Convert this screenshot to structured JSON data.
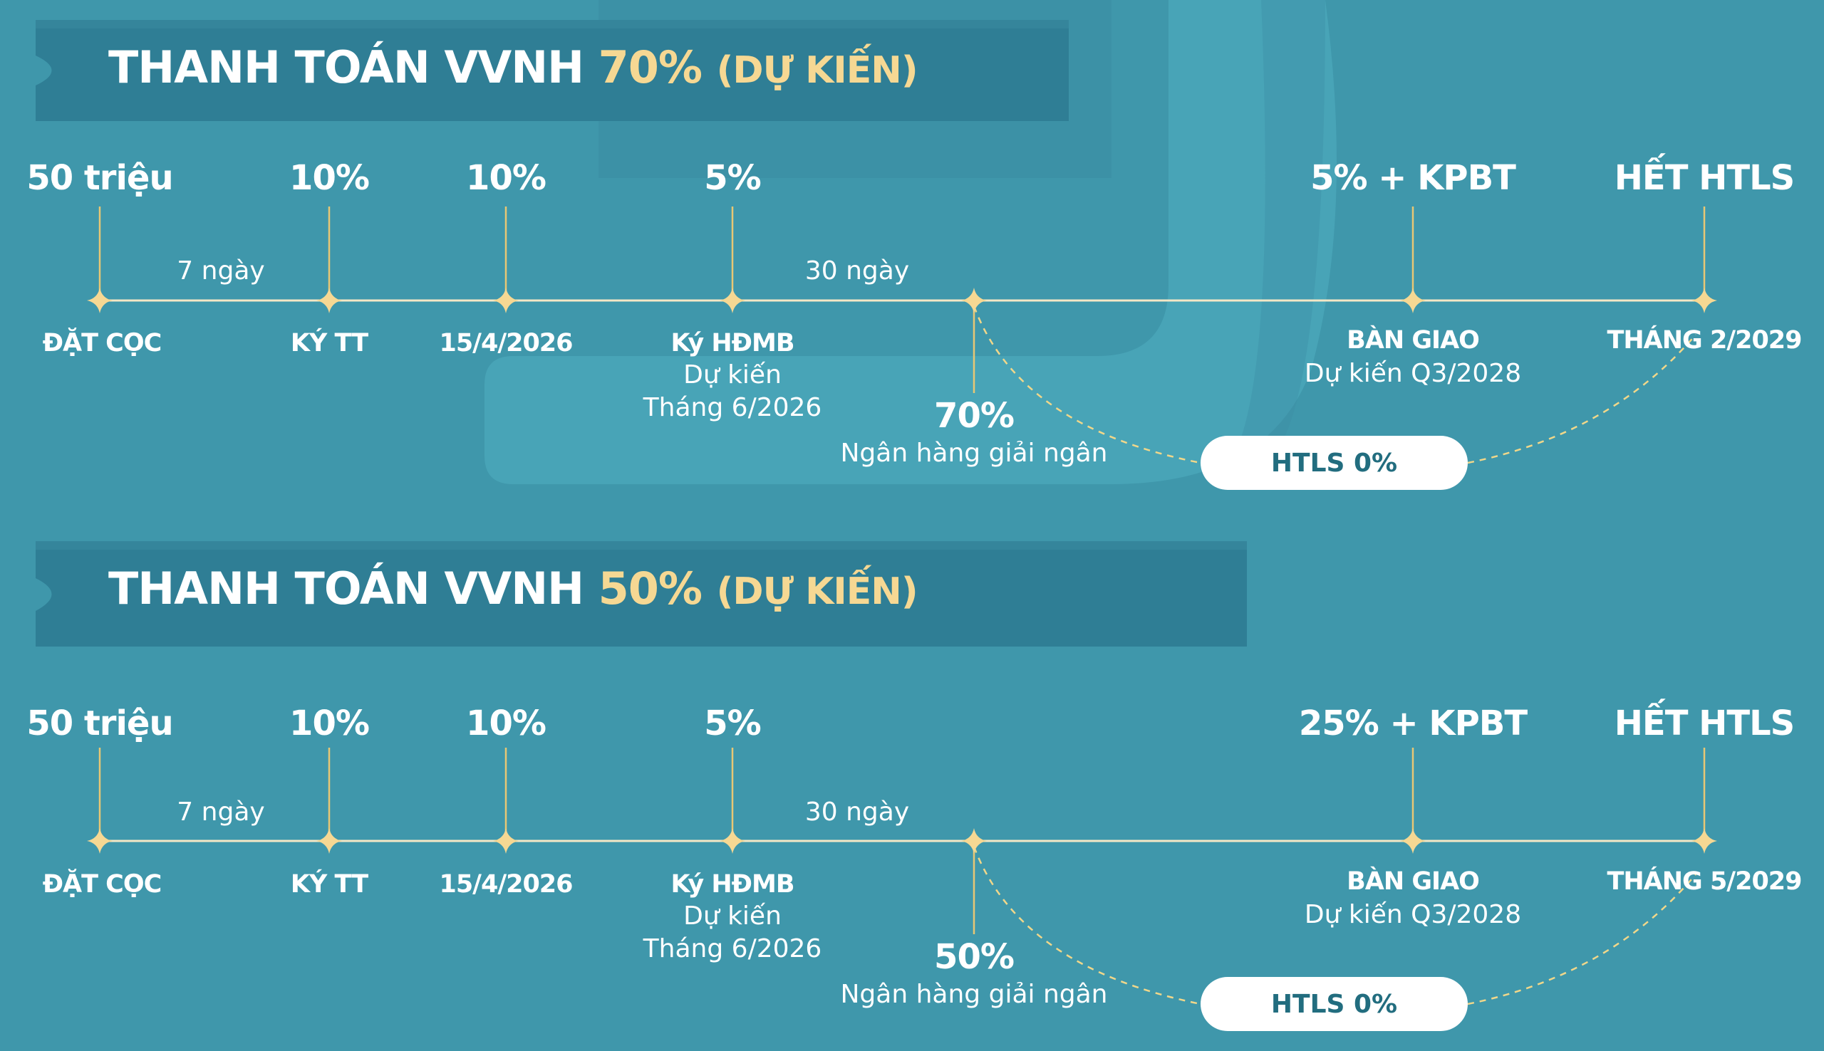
{
  "colors": {
    "background": "#3f97ab",
    "accent_gold": "#f6d893",
    "banner": "#2f7e95",
    "pill_text": "#226d7f"
  },
  "sections": [
    {
      "title": {
        "main": "THANH TOÁN VVNH",
        "pct": "70%",
        "sub": "(DỰ KIẾN)"
      },
      "top_labels": [
        "50 triệu",
        "10%",
        "10%",
        "5%",
        "5% + KPBT",
        "HẾT HTLS"
      ],
      "bottom_labels": [
        "ĐẶT CỌC",
        "KÝ TT",
        "15/4/2026",
        "Ký HĐMB",
        "BÀN GIAO",
        "THÁNG 2/2029"
      ],
      "hdmb_note": [
        "Dự kiến",
        "Tháng 6/2026"
      ],
      "handover_note": "Dự kiến Q3/2028",
      "intervals": [
        "7 ngày",
        "30 ngày"
      ],
      "bank_pct": "70%",
      "bank_note": "Ngân hàng giải ngân",
      "htls_pill": "HTLS 0%"
    },
    {
      "title": {
        "main": "THANH TOÁN VVNH",
        "pct": "50%",
        "sub": "(DỰ KIẾN)"
      },
      "top_labels": [
        "50 triệu",
        "10%",
        "10%",
        "5%",
        "25% + KPBT",
        "HẾT HTLS"
      ],
      "bottom_labels": [
        "ĐẶT CỌC",
        "KÝ TT",
        "15/4/2026",
        "Ký HĐMB",
        "BÀN GIAO",
        "THÁNG 5/2029"
      ],
      "hdmb_note": [
        "Dự kiến",
        "Tháng 6/2026"
      ],
      "handover_note": "Dự kiến Q3/2028",
      "intervals": [
        "7 ngày",
        "30 ngày"
      ],
      "bank_pct": "50%",
      "bank_note": "Ngân hàng giải ngân",
      "htls_pill": "HTLS 0%"
    }
  ]
}
